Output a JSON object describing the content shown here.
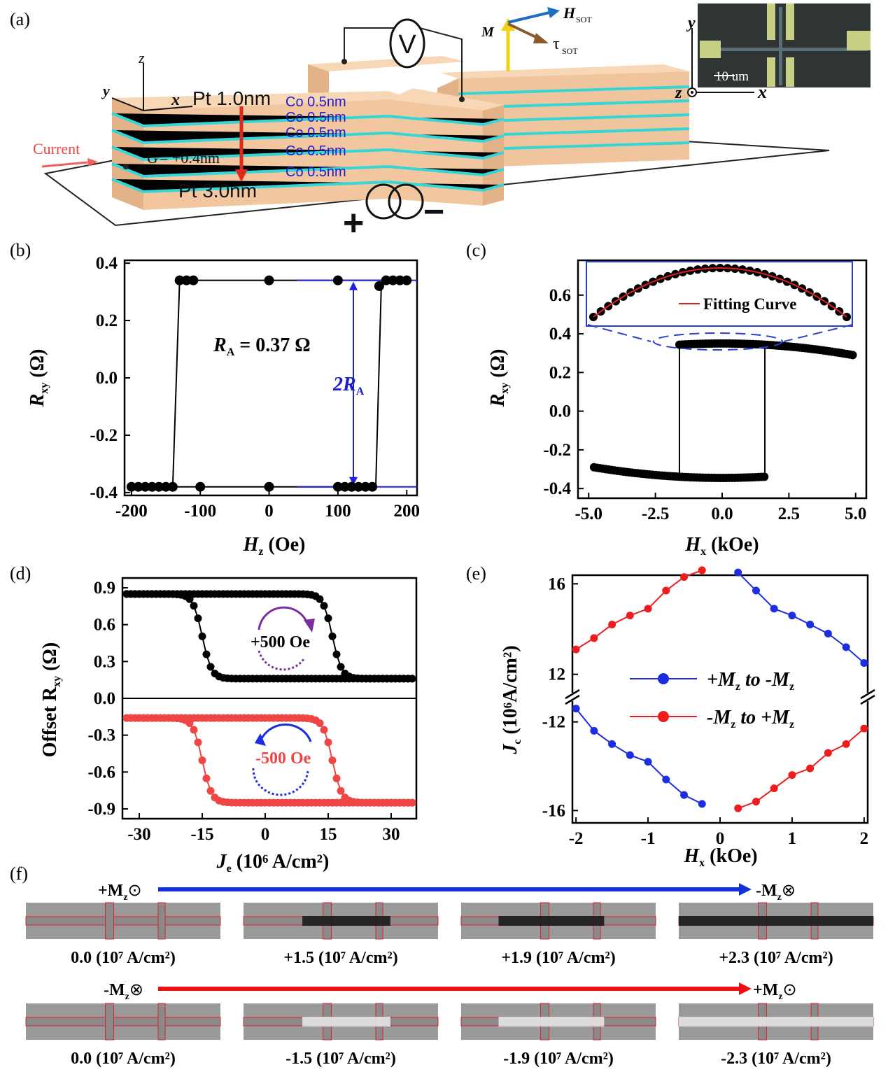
{
  "panels": {
    "a": "(a)",
    "b": "(b)",
    "c": "(c)",
    "d": "(d)",
    "e": "(e)",
    "f": "(f)"
  },
  "panel_a": {
    "layers_left": {
      "top": "Pt 1.0nm",
      "gap_sym": "G",
      "gap_val": "= +0.4nm",
      "bottom": "Pt 3.0nm"
    },
    "co_layers": [
      "Co 0.5nm",
      "Co 0.5nm",
      "Co 0.5nm",
      "Co 0.5nm",
      "Co 0.5nm"
    ],
    "current_label": "Current",
    "voltmeter": "V",
    "plus": "+",
    "minus": "−",
    "vec": {
      "M": "M",
      "H": "H",
      "H_sub": "SOT",
      "tau": "τ",
      "tau_sub": "SOT"
    },
    "axes_labels": {
      "x": "x",
      "y": "y",
      "z": "z"
    },
    "inset": {
      "scale": "10 um",
      "y": "y",
      "x": "x",
      "z": "z"
    },
    "colors": {
      "block": "#f2c79f",
      "co": "#36d6d6",
      "vec_m": "#f0d21a",
      "vec_h": "#1d6fbe",
      "vec_tau": "#8b5a2b"
    }
  },
  "chart_data": [
    {
      "id": "b",
      "type": "scatter",
      "xlabel": "H",
      "xlabel_sub": "z",
      "xlabel_unit": "(Oe)",
      "ylabel": "R",
      "ylabel_sub": "xy",
      "ylabel_unit": "(Ω)",
      "xlim": [
        -210,
        215
      ],
      "ylim": [
        -0.41,
        0.41
      ],
      "xticks": [
        -200,
        -100,
        0,
        100,
        200
      ],
      "yticks": [
        0.4,
        0.2,
        0.0,
        -0.2,
        -0.4
      ],
      "ytick_labels": [
        "0.4",
        "0.2",
        "0.0",
        "-0.2",
        "-0.4"
      ],
      "lower_branch": [
        [
          -200,
          -0.38
        ],
        [
          -190,
          -0.38
        ],
        [
          -180,
          -0.38
        ],
        [
          -170,
          -0.38
        ],
        [
          -160,
          -0.38
        ],
        [
          -150,
          -0.38
        ],
        [
          -140,
          -0.38
        ],
        [
          -100,
          -0.38
        ],
        [
          0,
          -0.38
        ],
        [
          100,
          -0.38
        ],
        [
          110,
          -0.38
        ],
        [
          120,
          -0.38
        ],
        [
          130,
          -0.38
        ],
        [
          140,
          -0.38
        ],
        [
          150,
          -0.38
        ]
      ],
      "upper_branch": [
        [
          -130,
          0.34
        ],
        [
          -120,
          0.34
        ],
        [
          -110,
          0.34
        ],
        [
          0,
          0.34
        ],
        [
          100,
          0.34
        ],
        [
          160,
          0.32
        ],
        [
          170,
          0.34
        ],
        [
          180,
          0.34
        ],
        [
          190,
          0.34
        ],
        [
          200,
          0.34
        ]
      ],
      "switch_up_at": -130,
      "switch_down_at": 155,
      "annotation": {
        "label": "R",
        "sub": "A",
        "value": "= 0.37 Ω",
        "arrow_label": "2R",
        "arrow_sub": "A"
      }
    },
    {
      "id": "c",
      "type": "scatter",
      "xlabel": "H",
      "xlabel_sub": "x",
      "xlabel_unit": "(kOe)",
      "ylabel": "R",
      "ylabel_sub": "xy",
      "ylabel_unit": "(Ω)",
      "xlim": [
        -5.4,
        5.4
      ],
      "ylim": [
        -0.45,
        0.78
      ],
      "xticks": [
        -5.0,
        -2.5,
        0.0,
        2.5,
        5.0
      ],
      "xtick_labels": [
        "-5.0",
        "-2.5",
        "0.0",
        "2.5",
        "5.0"
      ],
      "yticks": [
        0.6,
        0.4,
        0.2,
        0.0,
        -0.2,
        -0.4
      ],
      "ytick_labels": [
        "0.6",
        "0.4",
        "0.2",
        "0.0",
        "-0.2",
        "-0.4"
      ],
      "upper_range": [
        -1.6,
        4.9
      ],
      "upper_peak": 0.35,
      "upper_end": 0.29,
      "lower_range": [
        -4.8,
        1.6
      ],
      "lower_trough": -0.345,
      "lower_end": -0.29,
      "switch_at": [
        -1.6,
        1.6
      ],
      "inset_legend": "Fitting Curve"
    },
    {
      "id": "d",
      "type": "line",
      "xlabel": "J",
      "xlabel_sub": "e",
      "xlabel_unit": "(10⁶ A/cm²)",
      "ylabel": "Offset R",
      "ylabel_sub": "xy",
      "ylabel_unit": "(Ω)",
      "xlim": [
        -34,
        36
      ],
      "ylim": [
        -0.98,
        0.98
      ],
      "xticks": [
        -30,
        -15,
        0,
        15,
        30
      ],
      "xtick_labels": [
        "-30",
        "-15",
        "0",
        "15",
        "30"
      ],
      "yticks": [
        0.9,
        0.6,
        0.3,
        0.0,
        -0.3,
        -0.6,
        -0.9
      ],
      "ytick_labels": [
        "0.9",
        "0.6",
        "0.3",
        "0.0",
        "-0.3",
        "-0.6",
        "-0.9"
      ],
      "series": [
        {
          "name": "+500 Oe",
          "color": "#000000",
          "high": 0.85,
          "low": 0.16,
          "sw_a": -15,
          "sw_b": 16
        },
        {
          "name": "-500 Oe",
          "color": "#f04545",
          "high": -0.16,
          "low": -0.85,
          "sw_a": -15,
          "sw_b": 16
        }
      ]
    },
    {
      "id": "e",
      "type": "line",
      "xlabel": "H",
      "xlabel_sub": "x",
      "xlabel_unit": "(kOe)",
      "ylabel": "J",
      "ylabel_sub": "c",
      "ylabel_unit": "(10⁶A/cm²)",
      "xlim": [
        -2.05,
        2.05
      ],
      "xticks": [
        -2,
        -1,
        0,
        1,
        2
      ],
      "xtick_labels": [
        "-2",
        "-1",
        "0",
        "1",
        "2"
      ],
      "yticks_upper": [
        "16",
        "12"
      ],
      "yticks_lower": [
        "-12",
        "-16"
      ],
      "series": [
        {
          "name": "+M",
          "sub": "z",
          "mid": " to -M",
          "sub2": "z",
          "color": "#1c2ee0",
          "upper": [
            [
              0.25,
              16.5
            ],
            [
              0.5,
              15.7
            ],
            [
              0.75,
              14.9
            ],
            [
              1.0,
              14.6
            ],
            [
              1.25,
              14.2
            ],
            [
              1.5,
              13.8
            ],
            [
              1.75,
              13.2
            ],
            [
              2.0,
              12.5
            ]
          ],
          "lower": [
            [
              -2.0,
              -11.4
            ],
            [
              -1.75,
              -12.4
            ],
            [
              -1.5,
              -13.0
            ],
            [
              -1.25,
              -13.5
            ],
            [
              -1.0,
              -13.8
            ],
            [
              -0.75,
              -14.6
            ],
            [
              -0.5,
              -15.3
            ],
            [
              -0.25,
              -15.7
            ]
          ]
        },
        {
          "name": "-M",
          "sub": "z",
          "mid": " to +M",
          "sub2": "z",
          "color": "#ee1c1c",
          "upper": [
            [
              -2.0,
              13.1
            ],
            [
              -1.75,
              13.6
            ],
            [
              -1.5,
              14.2
            ],
            [
              -1.25,
              14.6
            ],
            [
              -1.0,
              14.9
            ],
            [
              -0.75,
              15.7
            ],
            [
              -0.5,
              16.3
            ],
            [
              -0.25,
              16.6
            ]
          ],
          "lower": [
            [
              0.25,
              -15.9
            ],
            [
              0.5,
              -15.6
            ],
            [
              0.75,
              -15.0
            ],
            [
              1.0,
              -14.4
            ],
            [
              1.25,
              -14.1
            ],
            [
              1.5,
              -13.4
            ],
            [
              1.75,
              -13.0
            ],
            [
              2.0,
              -12.3
            ]
          ]
        }
      ]
    }
  ],
  "panel_f": {
    "row1": {
      "start": "+M",
      "start_sub": "z",
      "start_sym": "⊙",
      "end": "-M",
      "end_sub": "z",
      "end_sym": "⊗",
      "color": "#1430d8",
      "captions": [
        "0.0 (10⁷ A/cm²)",
        "+1.5 (10⁷ A/cm²)",
        "+1.9 (10⁷ A/cm²)",
        "+2.3 (10⁷ A/cm²)"
      ]
    },
    "row2": {
      "start": "-M",
      "start_sub": "z",
      "start_sym": "⊗",
      "end": "+M",
      "end_sub": "z",
      "end_sym": "⊙",
      "color": "#ee1010",
      "captions": [
        "0.0 (10⁷ A/cm²)",
        "-1.5 (10⁷ A/cm²)",
        "-1.9 (10⁷ A/cm²)",
        "-2.3 (10⁷ A/cm²)"
      ]
    }
  }
}
